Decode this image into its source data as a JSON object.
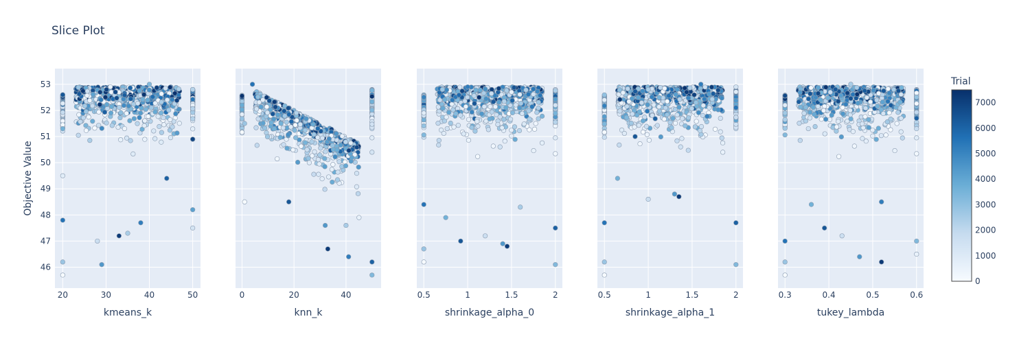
{
  "chart_data": {
    "type": "scatter",
    "title": "Slice Plot",
    "ylabel": "Objective Value",
    "ylim": [
      45.2,
      53.6
    ],
    "yticks": [
      46,
      47,
      48,
      49,
      50,
      51,
      52,
      53
    ],
    "colorbar": {
      "title": "Trial",
      "range": [
        0,
        7500
      ],
      "ticks": [
        0,
        1000,
        2000,
        3000,
        4000,
        5000,
        6000,
        7000
      ],
      "colorscale": [
        "#f7fbff",
        "#c6dbef",
        "#6baed6",
        "#2171b5",
        "#08306b"
      ]
    },
    "panels": [
      {
        "xlabel": "kmeans_k",
        "xlim": [
          18.2,
          51.8
        ],
        "xticks": [
          20,
          30,
          40,
          50
        ],
        "sample_points": [
          {
            "x": 20,
            "y": 45.7
          },
          {
            "x": 20,
            "y": 46.2
          },
          {
            "x": 20,
            "y": 47.8
          },
          {
            "x": 20,
            "y": 49.5
          },
          {
            "x": 20,
            "y": 51.3
          },
          {
            "x": 20,
            "y": 52.6
          },
          {
            "x": 28,
            "y": 47.0
          },
          {
            "x": 29,
            "y": 46.1
          },
          {
            "x": 33,
            "y": 47.2
          },
          {
            "x": 35,
            "y": 47.3
          },
          {
            "x": 38,
            "y": 47.7
          },
          {
            "x": 31,
            "y": 52.9
          },
          {
            "x": 40,
            "y": 53.0
          },
          {
            "x": 44,
            "y": 49.4
          },
          {
            "x": 50,
            "y": 47.5
          },
          {
            "x": 50,
            "y": 48.2
          },
          {
            "x": 50,
            "y": 50.9
          },
          {
            "x": 50,
            "y": 52.8
          }
        ]
      },
      {
        "xlabel": "knn_k",
        "xlim": [
          -2.5,
          53.5
        ],
        "xticks": [
          0,
          20,
          40
        ],
        "sample_points": [
          {
            "x": 1,
            "y": 48.5
          },
          {
            "x": 1,
            "y": 51.5
          },
          {
            "x": 4,
            "y": 53.0
          },
          {
            "x": 8,
            "y": 52.4
          },
          {
            "x": 15,
            "y": 51.5
          },
          {
            "x": 18,
            "y": 48.5
          },
          {
            "x": 25,
            "y": 50.5
          },
          {
            "x": 32,
            "y": 47.6
          },
          {
            "x": 33,
            "y": 46.7
          },
          {
            "x": 40,
            "y": 47.6
          },
          {
            "x": 41,
            "y": 46.4
          },
          {
            "x": 45,
            "y": 47.9
          },
          {
            "x": 50,
            "y": 45.7
          },
          {
            "x": 50,
            "y": 46.2
          },
          {
            "x": 50,
            "y": 50.4
          }
        ]
      },
      {
        "xlabel": "shrinkage_alpha_0",
        "xlim": [
          0.42,
          2.08
        ],
        "xticks": [
          0.5,
          1,
          1.5,
          2
        ],
        "sample_points": [
          {
            "x": 0.5,
            "y": 46.2
          },
          {
            "x": 0.5,
            "y": 46.7
          },
          {
            "x": 0.5,
            "y": 48.4
          },
          {
            "x": 0.5,
            "y": 51.9
          },
          {
            "x": 0.75,
            "y": 47.9
          },
          {
            "x": 0.92,
            "y": 47.0
          },
          {
            "x": 1.2,
            "y": 47.2
          },
          {
            "x": 1.4,
            "y": 46.9
          },
          {
            "x": 1.45,
            "y": 46.8
          },
          {
            "x": 1.6,
            "y": 48.3
          },
          {
            "x": 1.0,
            "y": 52.9
          },
          {
            "x": 1.5,
            "y": 52.7
          },
          {
            "x": 2.0,
            "y": 46.1
          },
          {
            "x": 2.0,
            "y": 47.5
          },
          {
            "x": 2.0,
            "y": 52.2
          }
        ]
      },
      {
        "xlabel": "shrinkage_alpha_1",
        "xlim": [
          0.42,
          2.08
        ],
        "xticks": [
          0.5,
          1,
          1.5,
          2
        ],
        "sample_points": [
          {
            "x": 0.5,
            "y": 45.7
          },
          {
            "x": 0.5,
            "y": 46.2
          },
          {
            "x": 0.5,
            "y": 47.7
          },
          {
            "x": 0.5,
            "y": 52.4
          },
          {
            "x": 0.65,
            "y": 49.4
          },
          {
            "x": 0.85,
            "y": 51.0
          },
          {
            "x": 1.0,
            "y": 48.6
          },
          {
            "x": 1.3,
            "y": 48.8
          },
          {
            "x": 1.35,
            "y": 48.7
          },
          {
            "x": 1.0,
            "y": 52.8
          },
          {
            "x": 1.6,
            "y": 53.0
          },
          {
            "x": 1.85,
            "y": 50.4
          },
          {
            "x": 2.0,
            "y": 46.1
          },
          {
            "x": 2.0,
            "y": 47.7
          },
          {
            "x": 2.0,
            "y": 52.9
          }
        ]
      },
      {
        "xlabel": "tukey_lambda",
        "xlim": [
          0.284,
          0.616
        ],
        "xticks": [
          0.3,
          0.4,
          0.5,
          0.6
        ],
        "sample_points": [
          {
            "x": 0.3,
            "y": 45.7
          },
          {
            "x": 0.3,
            "y": 46.2
          },
          {
            "x": 0.3,
            "y": 47.0
          },
          {
            "x": 0.3,
            "y": 52.2
          },
          {
            "x": 0.36,
            "y": 48.4
          },
          {
            "x": 0.39,
            "y": 47.5
          },
          {
            "x": 0.43,
            "y": 47.2
          },
          {
            "x": 0.47,
            "y": 46.4
          },
          {
            "x": 0.52,
            "y": 46.2
          },
          {
            "x": 0.45,
            "y": 53.0
          },
          {
            "x": 0.52,
            "y": 48.5
          },
          {
            "x": 0.6,
            "y": 46.5
          },
          {
            "x": 0.6,
            "y": 47.0
          },
          {
            "x": 0.6,
            "y": 51.7
          }
        ]
      }
    ]
  }
}
